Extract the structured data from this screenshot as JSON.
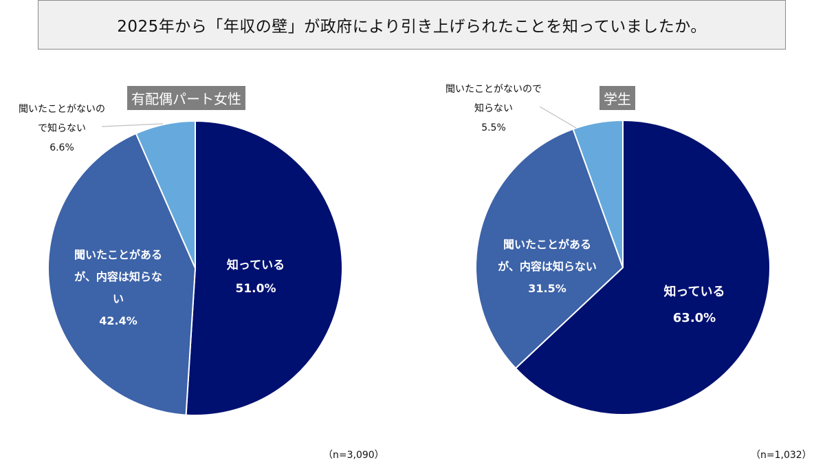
{
  "title": "2025年から「年収の壁」が政府により引き上げられたことを知っていましたか。",
  "colors": {
    "know": "#001070",
    "heard": "#3d63a8",
    "not_heard": "#66a9dd",
    "title_bg": "#f0f0f0",
    "tag_bg": "#7f7f7f"
  },
  "chart_data": [
    {
      "type": "pie",
      "title": "有配偶パート女性",
      "n_label": "（n=3,090）",
      "slices": [
        {
          "name": "知っている",
          "value": 51.0,
          "label_lines": [
            "知っている",
            "51.0%"
          ],
          "color": "#001070"
        },
        {
          "name": "聞いたことがあるが、内容は知らない",
          "value": 42.4,
          "label_lines": [
            "聞いたことがある",
            "が、内容は知らな",
            "い",
            "42.4%"
          ],
          "color": "#3d63a8"
        },
        {
          "name": "聞いたことがないので知らない",
          "value": 6.6,
          "label_lines": [
            "聞いたことがないの",
            "で知らない",
            "6.6%"
          ],
          "color": "#66a9dd"
        }
      ]
    },
    {
      "type": "pie",
      "title": "学生",
      "n_label": "（n=1,032）",
      "slices": [
        {
          "name": "知っている",
          "value": 63.0,
          "label_lines": [
            "知っている",
            "63.0%"
          ],
          "color": "#001070"
        },
        {
          "name": "聞いたことがあるが、内容は知らない",
          "value": 31.5,
          "label_lines": [
            "聞いたことがある",
            "が、内容は知らない",
            "31.5%"
          ],
          "color": "#3d63a8"
        },
        {
          "name": "聞いたことがないので知らない",
          "value": 5.5,
          "label_lines": [
            "聞いたことがないので",
            "知らない",
            "5.5%"
          ],
          "color": "#66a9dd"
        }
      ]
    }
  ]
}
